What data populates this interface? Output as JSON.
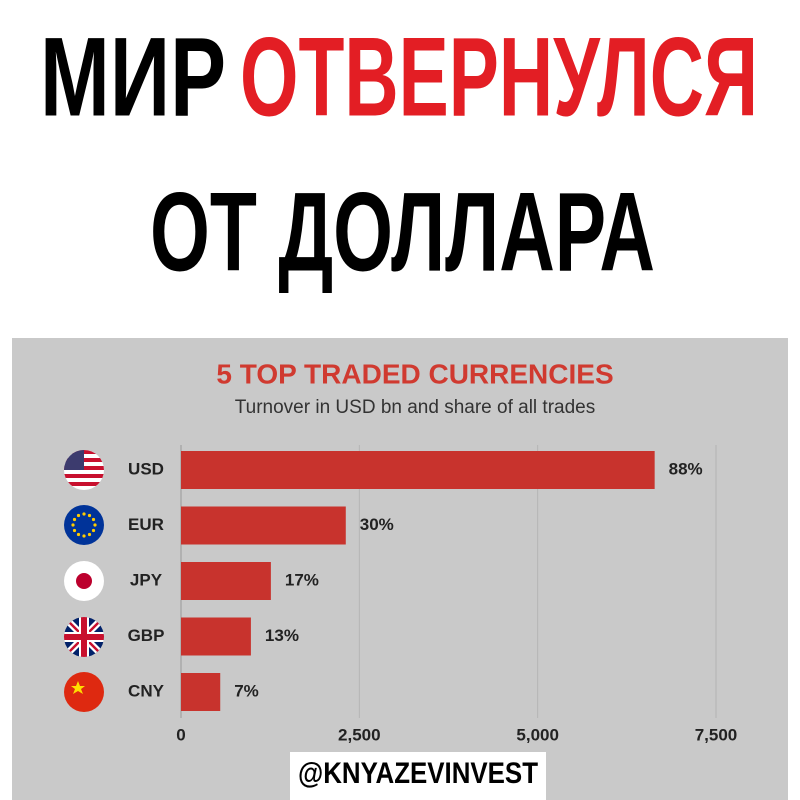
{
  "header": {
    "title_parts": [
      "МИР",
      "ОТВЕРНУЛСЯ",
      "ОТ ДОЛЛАРА"
    ]
  },
  "chart_data": {
    "type": "hbar",
    "title": "5 TOP TRADED CURRENCIES",
    "subtitle": "Turnover in USD bn and share of all trades",
    "categories": [
      "USD",
      "EUR",
      "JPY",
      "GBP",
      "CNY"
    ],
    "values": [
      6640,
      2310,
      1260,
      980,
      550
    ],
    "share_labels": [
      "88%",
      "30%",
      "17%",
      "13%",
      "7%"
    ],
    "color": "#c8332d",
    "xlim": [
      0,
      7500
    ],
    "xticks": [
      0,
      {
        "value": 2500,
        "label": "2,500"
      },
      {
        "value": 5000,
        "label": "5,000"
      },
      {
        "value": 7500,
        "label": "7,500"
      }
    ],
    "grid": true
  },
  "footer": {
    "handle": "@KNYAZEVINVEST"
  }
}
